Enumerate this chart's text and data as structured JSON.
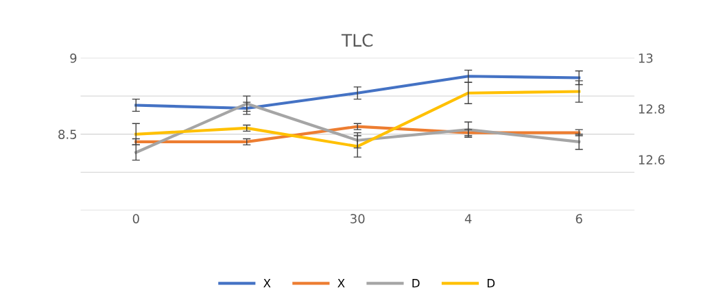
{
  "chart_data": {
    "type": "line",
    "title": "TLC",
    "categories": [
      "0",
      null,
      "30",
      "4",
      "6"
    ],
    "series": [
      {
        "name": "X",
        "color": "#4472c4",
        "values": [
          8.69,
          8.67,
          8.77,
          8.88,
          8.87
        ],
        "errors": [
          0.04,
          0.04,
          0.04,
          0.04,
          0.045
        ]
      },
      {
        "name": "X",
        "color": "#ed7d31",
        "values": [
          8.45,
          8.45,
          8.55,
          8.51,
          8.51
        ],
        "errors": [
          0.02,
          0.02,
          0.02,
          0.02,
          0.02
        ]
      },
      {
        "name": "D",
        "color": "#a5a5a5",
        "values": [
          8.38,
          8.7,
          8.46,
          8.53,
          8.45
        ],
        "errors": [
          0.05,
          0.05,
          0.05,
          0.05,
          0.05
        ]
      },
      {
        "name": "D",
        "color": "#ffc000",
        "values": [
          8.5,
          8.54,
          8.42,
          8.77,
          8.78
        ],
        "errors": [
          0.07,
          0.02,
          0.07,
          0.07,
          0.07
        ]
      }
    ],
    "ylim": [
      8,
      9
    ],
    "yticks": [
      {
        "value": 8,
        "label": null
      },
      {
        "value": 8.25,
        "label": null
      },
      {
        "value": 8.5,
        "label": "8.5"
      },
      {
        "value": 8.75,
        "label": null
      },
      9
    ],
    "y2lim": [
      12.4,
      13
    ],
    "y2ticks": [
      {
        "value": 12.4,
        "label": null
      },
      {
        "value": 12.6,
        "label": "12.6"
      },
      {
        "value": 12.8,
        "label": "12.8"
      },
      13
    ],
    "grid": "y",
    "legend": "bottom",
    "marker": "none",
    "line_style": "solid"
  }
}
